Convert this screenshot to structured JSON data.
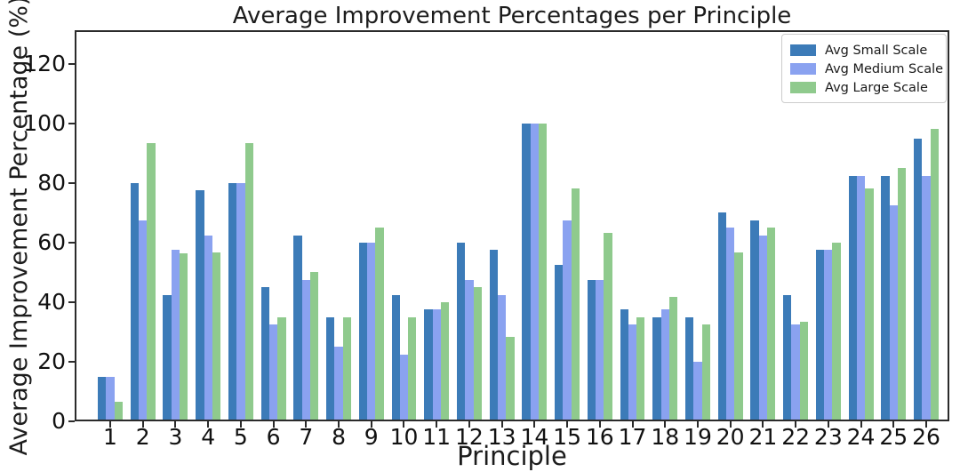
{
  "chart_data": {
    "type": "bar",
    "title": "Average Improvement Percentages per Principle",
    "xlabel": "Principle",
    "ylabel": "Average Improvement Percentage (%)",
    "categories": [
      "1",
      "2",
      "3",
      "4",
      "5",
      "6",
      "7",
      "8",
      "9",
      "10",
      "11",
      "12",
      "13",
      "14",
      "15",
      "16",
      "17",
      "18",
      "19",
      "20",
      "21",
      "22",
      "23",
      "24",
      "25",
      "26"
    ],
    "series": [
      {
        "name": "Avg Small Scale",
        "color": "#3C7BB8",
        "values": [
          15,
          80,
          42.5,
          77.5,
          80,
          45,
          62.5,
          35,
          60,
          42.5,
          37.5,
          60,
          57.5,
          100,
          52.5,
          47.5,
          37.5,
          35,
          35,
          70,
          67.5,
          42.5,
          57.5,
          82.5,
          82.5,
          95
        ]
      },
      {
        "name": "Avg Medium Scale",
        "color": "#8AA2F0",
        "values": [
          15,
          67.5,
          57.5,
          62.5,
          80,
          32.5,
          47.5,
          25,
          60,
          22.5,
          37.5,
          47.5,
          42.5,
          100,
          67.5,
          47.5,
          32.5,
          37.5,
          20,
          65,
          62.5,
          32.5,
          57.5,
          82.5,
          72.5,
          82.5
        ]
      },
      {
        "name": "Avg Large Scale",
        "color": "#8FCA8D",
        "values": [
          6.7,
          93.3,
          56.3,
          56.7,
          93.3,
          35,
          50,
          35,
          65,
          35,
          40,
          45,
          28.3,
          100,
          78.3,
          63.3,
          35,
          41.7,
          32.5,
          56.7,
          65,
          33.3,
          60,
          78.3,
          85,
          98.3
        ]
      }
    ],
    "yticks": [
      0,
      20,
      40,
      60,
      80,
      100,
      120
    ],
    "ylim": [
      0,
      131.3
    ],
    "grid": false,
    "legend_position": "upper right"
  }
}
